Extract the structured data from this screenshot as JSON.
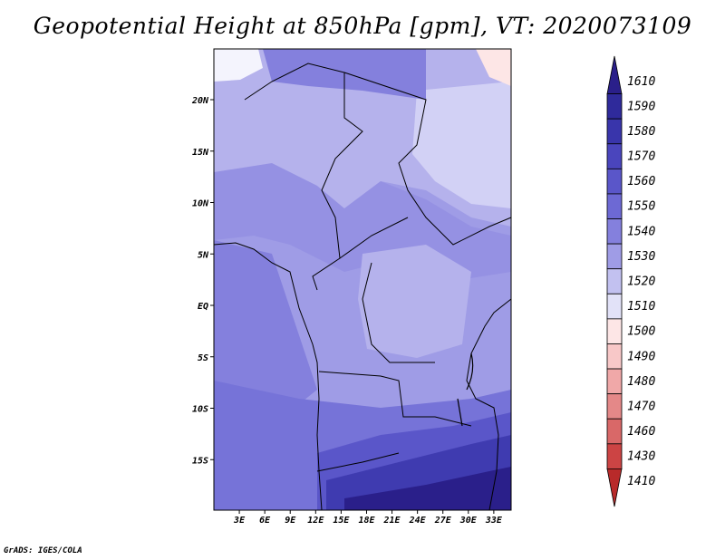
{
  "title": "Geopotential Height at 850hPa [gpm], VT: 2020073109",
  "credit": "GrADS: IGES/COLA",
  "lon_labels": [
    "3E",
    "6E",
    "9E",
    "12E",
    "15E",
    "18E",
    "21E",
    "24E",
    "27E",
    "30E",
    "33E"
  ],
  "lon_values": [
    3,
    6,
    9,
    12,
    15,
    18,
    21,
    24,
    27,
    30,
    33
  ],
  "lat_labels": [
    "20N",
    "15N",
    "10N",
    "5N",
    "EQ",
    "5S",
    "10S",
    "15S"
  ],
  "lat_values": [
    20,
    15,
    10,
    5,
    0,
    -5,
    -10,
    -15
  ],
  "colorbar": {
    "levels": [
      "1610",
      "1590",
      "1580",
      "1570",
      "1560",
      "1550",
      "1540",
      "1530",
      "1520",
      "1510",
      "1500",
      "1490",
      "1480",
      "1470",
      "1460",
      "1430",
      "1410"
    ],
    "colors": [
      "#2a1f8a",
      "#2f2a9b",
      "#3935ab",
      "#4a45bd",
      "#5a56c9",
      "#6d69d4",
      "#8480dd",
      "#9f9ce6",
      "#c2c1f0",
      "#e2e2f8",
      "#fde6e6",
      "#f8c8c8",
      "#f0a8a8",
      "#e48888",
      "#d96868",
      "#cc4444",
      "#b82a2a"
    ]
  }
}
